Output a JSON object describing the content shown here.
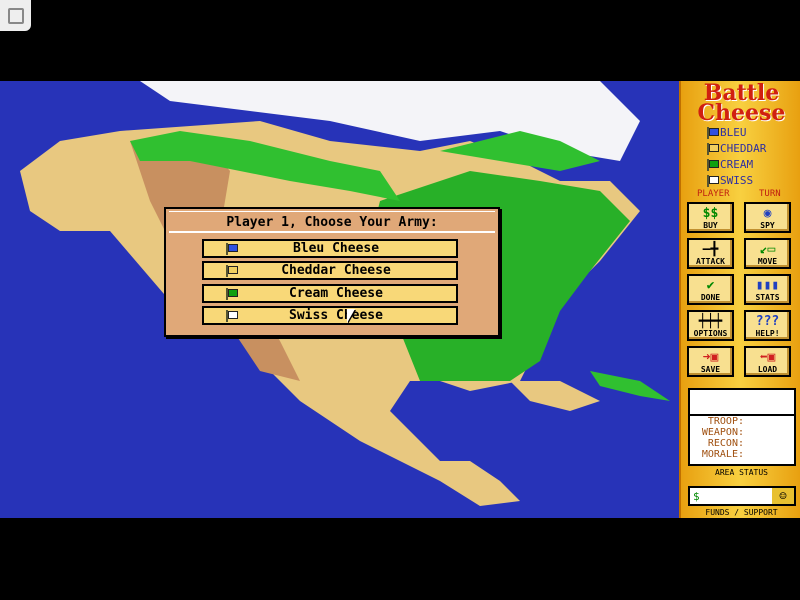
{
  "game_title": "Battle Cheese",
  "title_line1": "Battle",
  "title_line2": "Cheese",
  "players": [
    {
      "label": "BLEU",
      "color": "#3050e0"
    },
    {
      "label": "CHEDDAR",
      "color": "#f0d060"
    },
    {
      "label": "CREAM",
      "color": "#10a010"
    },
    {
      "label": "SWISS",
      "color": "#ffffff"
    }
  ],
  "player_label": "PLAYER",
  "turn_label": "TURN",
  "buttons": {
    "buy": "BUY",
    "spy": "SPY",
    "attack": "ATTACK",
    "move": "MOVE",
    "done": "DONE",
    "stats": "STATS",
    "options": "OPTIONS",
    "help": "HELP!",
    "save": "SAVE",
    "load": "LOAD"
  },
  "area_status": {
    "troop": "TROOP:",
    "weapon": "WEAPON:",
    "recon": "RECON:",
    "morale": "MORALE:",
    "label": "AREA STATUS"
  },
  "funds": {
    "value": "$",
    "label": "FUNDS / SUPPORT"
  },
  "dialog": {
    "title": "Player 1, Choose Your Army:",
    "options": [
      {
        "label": "Bleu Cheese",
        "color": "#3050e0"
      },
      {
        "label": "Cheddar Cheese",
        "color": "#f0d060"
      },
      {
        "label": "Cream Cheese",
        "color": "#10a010"
      },
      {
        "label": "Swiss Cheese",
        "color": "#ffffff"
      }
    ]
  }
}
